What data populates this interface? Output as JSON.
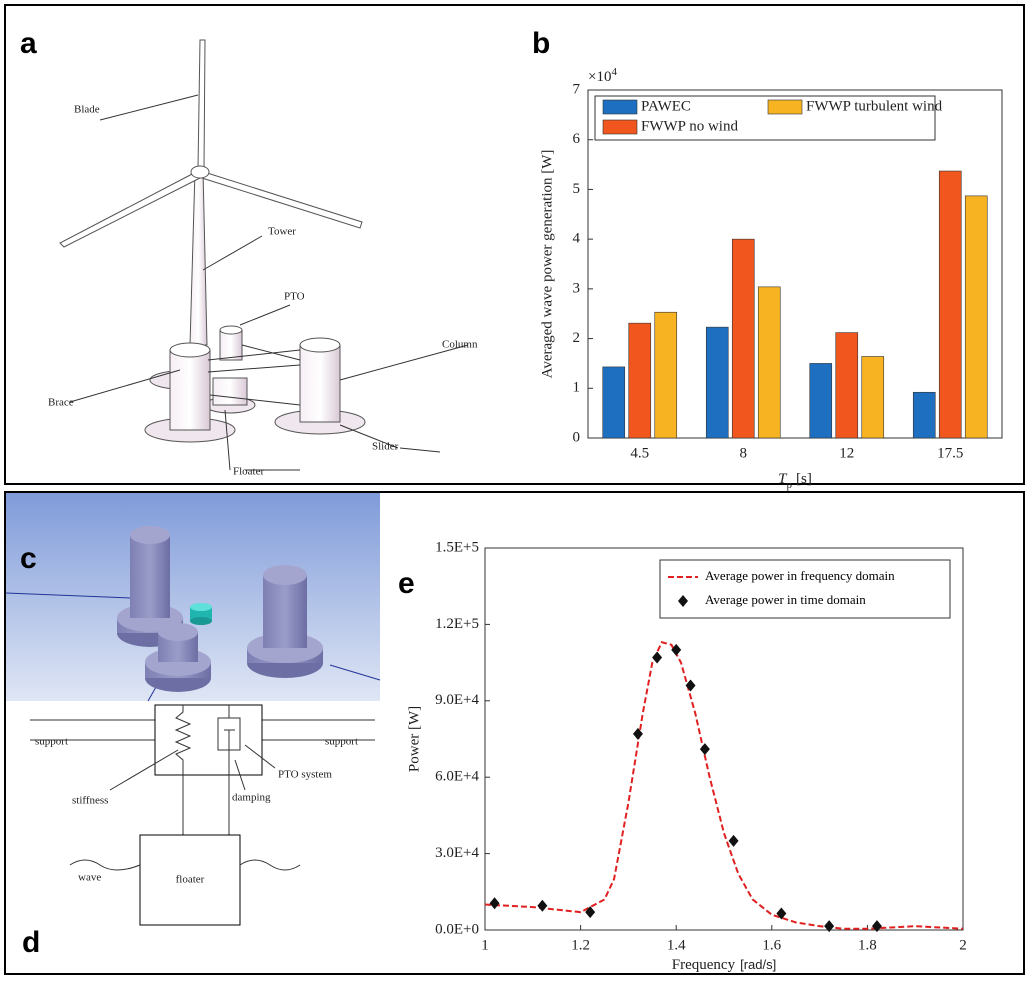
{
  "figure": {
    "panel_labels": [
      "a",
      "b",
      "c",
      "d",
      "e"
    ]
  },
  "diagram_a": {
    "labels": {
      "blade": "Blade",
      "tower": "Tower",
      "pto": "PTO",
      "column": "Column",
      "brace": "Brace",
      "slider": "Slider",
      "floater": "Floater"
    }
  },
  "diagram_d": {
    "labels": {
      "support_left": "support",
      "support_right": "support",
      "stiffness": "stiffness",
      "damping": "damping",
      "pto_system": "PTO system",
      "wave": "wave",
      "floater": "floater"
    }
  },
  "chart_data": [
    {
      "type": "bar",
      "ylabel": "Averaged wave power generation [W]",
      "xlabel": {
        "symbol": "T",
        "subscript": "p",
        "unit": "[s]"
      },
      "y_multiplier": {
        "base": "×10",
        "exponent": "4"
      },
      "categories": [
        "4.5",
        "8",
        "12",
        "17.5"
      ],
      "series": [
        {
          "name": "PAWEC",
          "color": "#1f6fc0",
          "values": [
            1.43,
            2.23,
            1.5,
            0.92
          ]
        },
        {
          "name": "FWWP no wind",
          "color": "#f0561d",
          "values": [
            2.31,
            4.0,
            2.12,
            5.37
          ]
        },
        {
          "name": "FWWP turbulent wind",
          "color": "#f8b322",
          "values": [
            2.53,
            3.04,
            1.64,
            4.87
          ]
        }
      ],
      "ylim": [
        0,
        7
      ],
      "yticks": [
        0,
        1,
        2,
        3,
        4,
        5,
        6,
        7
      ],
      "legend": "upper-left"
    },
    {
      "type": "line",
      "xlabel": {
        "main": "Frequency",
        "unit": "[rad/s]"
      },
      "ylabel": "Power [W]",
      "xlim": [
        1,
        2
      ],
      "xticks": [
        1,
        1.2,
        1.4,
        1.6,
        1.8,
        2
      ],
      "ylim": [
        0,
        150000
      ],
      "yticks": [
        {
          "value": 0,
          "label": "0.0E+0"
        },
        {
          "value": 30000,
          "label": "3.0E+4"
        },
        {
          "value": 60000,
          "label": "6.0E+4"
        },
        {
          "value": 90000,
          "label": "9.0E+4"
        },
        {
          "value": 120000,
          "label": "1.2E+5"
        },
        {
          "value": 150000,
          "label": "1.5E+5"
        }
      ],
      "legend": "upper-right",
      "series": [
        {
          "name": "Average power in frequency domain",
          "color": "#e02020",
          "style": "dashed-line",
          "x": [
            1,
            1.1,
            1.2,
            1.25,
            1.27,
            1.3,
            1.33,
            1.35,
            1.37,
            1.39,
            1.41,
            1.44,
            1.47,
            1.5,
            1.53,
            1.56,
            1.6,
            1.65,
            1.7,
            1.75,
            1.8,
            1.85,
            1.9,
            2
          ],
          "values": [
            10000,
            9000,
            7000,
            12000,
            20000,
            50000,
            85000,
            105000,
            113000,
            112000,
            105000,
            85000,
            60000,
            38000,
            22000,
            12000,
            6000,
            3000,
            1500,
            500,
            500,
            1000,
            1500,
            500
          ]
        },
        {
          "name": "Average power in time domain",
          "color": "#111111",
          "style": "diamond-marker",
          "x": [
            1.02,
            1.12,
            1.22,
            1.32,
            1.36,
            1.4,
            1.43,
            1.46,
            1.52,
            1.62,
            1.72,
            1.82
          ],
          "values": [
            10500,
            9500,
            7000,
            77000,
            107000,
            110000,
            96000,
            71000,
            35000,
            6500,
            1500,
            1500
          ]
        }
      ]
    }
  ]
}
